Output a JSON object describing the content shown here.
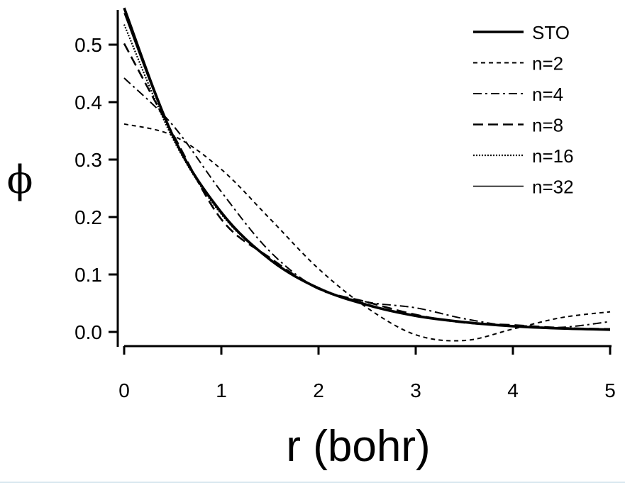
{
  "chart_data": {
    "type": "line",
    "title": "",
    "xlabel": "r (bohr)",
    "ylabel": "ϕ",
    "xlim": [
      0,
      5
    ],
    "ylim": [
      -0.02,
      0.56
    ],
    "xticks": [
      0,
      1,
      2,
      3,
      4,
      5
    ],
    "xtick_labels": [
      "0",
      "1",
      "2",
      "3",
      "4",
      "5"
    ],
    "yticks": [
      0.0,
      0.1,
      0.2,
      0.3,
      0.4,
      0.5
    ],
    "ytick_labels": [
      "0.0",
      "0.1",
      "0.2",
      "0.3",
      "0.4",
      "0.5"
    ],
    "legend_position": "top-right",
    "x": [
      0,
      0.5,
      1,
      1.5,
      2,
      2.5,
      3,
      3.5,
      4,
      4.5,
      5
    ],
    "series": [
      {
        "name": "STO",
        "style": "solid-thick",
        "color": "#000000",
        "values": [
          0.564,
          0.342,
          0.208,
          0.126,
          0.076,
          0.047,
          0.028,
          0.017,
          0.01,
          0.006,
          0.004
        ]
      },
      {
        "name": "n=2",
        "style": "dotted",
        "color": "#000000",
        "values": [
          0.362,
          0.342,
          0.283,
          0.197,
          0.11,
          0.042,
          -0.005,
          -0.015,
          0.005,
          0.025,
          0.035
        ]
      },
      {
        "name": "n=4",
        "style": "dash-dot",
        "color": "#000000",
        "values": [
          0.442,
          0.36,
          0.244,
          0.14,
          0.075,
          0.052,
          0.042,
          0.023,
          0.01,
          0.008,
          0.018
        ]
      },
      {
        "name": "n=8",
        "style": "dashed",
        "color": "#000000",
        "values": [
          0.502,
          0.345,
          0.196,
          0.129,
          0.075,
          0.052,
          0.03,
          0.016,
          0.012,
          0.007,
          0.005
        ]
      },
      {
        "name": "n=16",
        "style": "fine-dotted",
        "color": "#000000",
        "values": [
          0.535,
          0.337,
          0.205,
          0.126,
          0.077,
          0.048,
          0.028,
          0.017,
          0.01,
          0.006,
          0.004
        ]
      },
      {
        "name": "n=32",
        "style": "solid-thin",
        "color": "#000000",
        "values": [
          0.555,
          0.34,
          0.207,
          0.126,
          0.076,
          0.047,
          0.028,
          0.017,
          0.01,
          0.006,
          0.004
        ]
      }
    ]
  }
}
